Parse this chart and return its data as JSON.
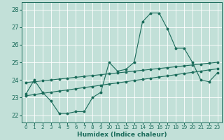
{
  "xlabel": "Humidex (Indice chaleur)",
  "xlim": [
    -0.5,
    23.5
  ],
  "ylim": [
    21.6,
    28.4
  ],
  "xticks": [
    0,
    1,
    2,
    3,
    4,
    5,
    6,
    7,
    8,
    9,
    10,
    11,
    12,
    13,
    14,
    15,
    16,
    17,
    18,
    19,
    20,
    21,
    22,
    23
  ],
  "yticks": [
    22,
    23,
    24,
    25,
    26,
    27,
    28
  ],
  "bg_color": "#c2e0d8",
  "line_color": "#1a6b5a",
  "grid_color": "#ffffff",
  "line1_x": [
    0,
    1,
    2,
    3,
    4,
    5,
    6,
    7,
    8,
    9,
    10,
    11,
    12,
    13,
    14,
    15,
    16,
    17,
    18,
    19,
    20,
    21,
    22,
    23
  ],
  "line1_y": [
    23.2,
    24.0,
    23.3,
    22.8,
    22.1,
    22.1,
    22.2,
    22.2,
    23.0,
    23.3,
    25.0,
    24.5,
    24.6,
    25.0,
    27.3,
    27.8,
    27.8,
    26.9,
    25.8,
    25.8,
    25.0,
    24.0,
    23.9,
    24.4
  ],
  "line2_x": [
    0,
    1,
    2,
    3,
    4,
    5,
    6,
    7,
    8,
    9,
    10,
    11,
    12,
    13,
    14,
    15,
    16,
    17,
    18,
    19,
    20,
    21,
    22,
    23
  ],
  "line2_y": [
    23.85,
    23.9,
    23.95,
    24.0,
    24.05,
    24.1,
    24.15,
    24.2,
    24.25,
    24.3,
    24.35,
    24.4,
    24.45,
    24.5,
    24.55,
    24.6,
    24.65,
    24.7,
    24.75,
    24.8,
    24.85,
    24.9,
    24.95,
    25.0
  ],
  "line3_x": [
    0,
    1,
    2,
    3,
    4,
    5,
    6,
    7,
    8,
    9,
    10,
    11,
    12,
    13,
    14,
    15,
    16,
    17,
    18,
    19,
    20,
    21,
    22,
    23
  ],
  "line3_y": [
    23.1,
    23.17,
    23.24,
    23.3,
    23.37,
    23.43,
    23.5,
    23.57,
    23.63,
    23.7,
    23.77,
    23.83,
    23.9,
    23.97,
    24.03,
    24.1,
    24.17,
    24.23,
    24.3,
    24.37,
    24.43,
    24.5,
    24.57,
    24.63
  ]
}
